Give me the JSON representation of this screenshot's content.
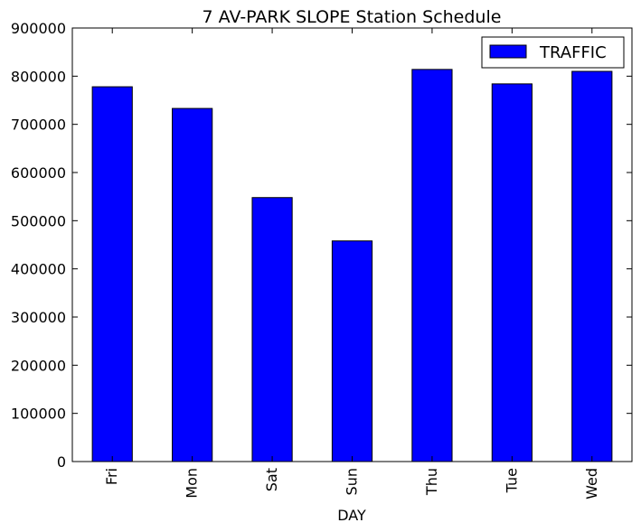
{
  "chart_data": {
    "type": "bar",
    "title": "7 AV-PARK SLOPE Station Schedule",
    "xlabel": "DAY",
    "ylabel": "",
    "categories": [
      "Fri",
      "Mon",
      "Sat",
      "Sun",
      "Thu",
      "Tue",
      "Wed"
    ],
    "series": [
      {
        "name": "TRAFFIC",
        "values": [
          778000,
          733000,
          548000,
          458000,
          814000,
          784000,
          810000
        ],
        "color": "#0000ff"
      }
    ],
    "ylim": [
      0,
      900000
    ],
    "yticks": [
      "0",
      "100000",
      "200000",
      "300000",
      "400000",
      "500000",
      "600000",
      "700000",
      "800000",
      "900000"
    ],
    "grid": false,
    "legend_position": "top-right"
  }
}
